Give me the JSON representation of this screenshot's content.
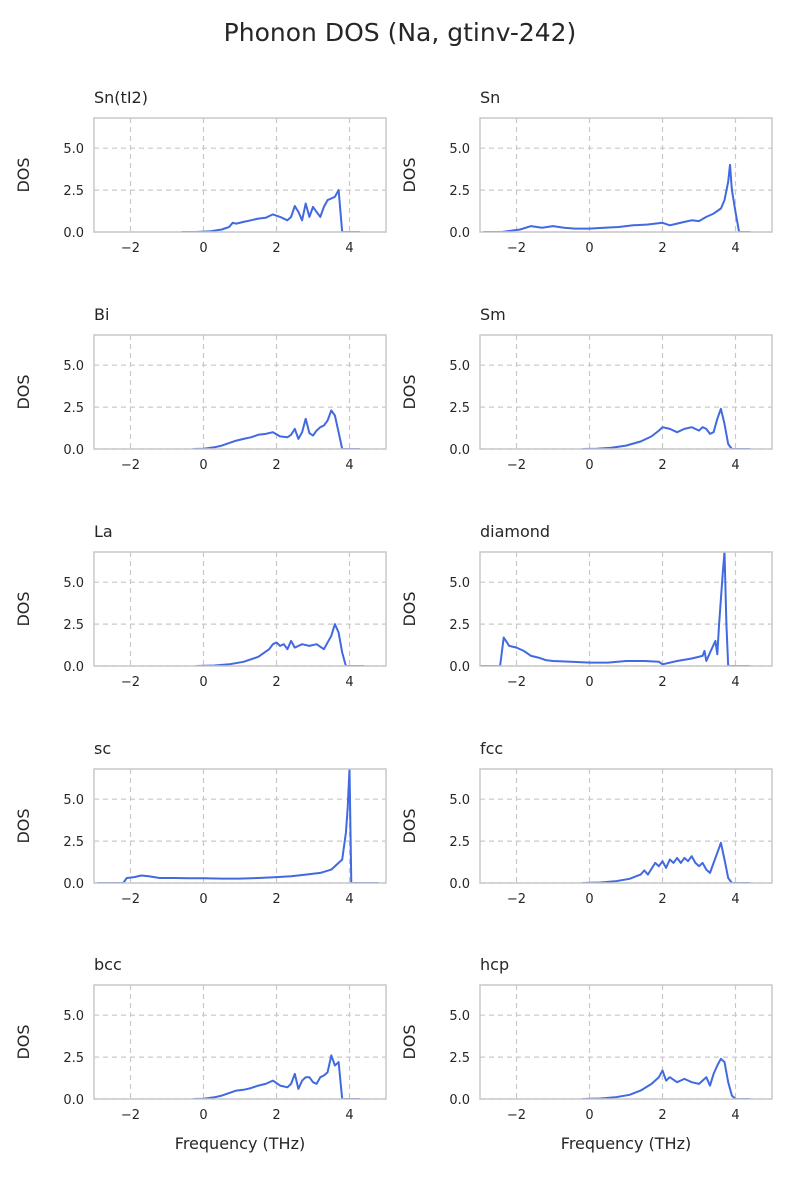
{
  "figure": {
    "title": "Phonon DOS (Na, gtinv-242)"
  },
  "chart_data": [
    {
      "type": "line",
      "title": "Sn(tI2)",
      "xlabel": "",
      "ylabel": "DOS",
      "xlim": [
        -3,
        5
      ],
      "ylim": [
        0,
        6.8
      ],
      "xticks": [
        -2,
        0,
        2,
        4
      ],
      "yticks": [
        0.0,
        2.5,
        5.0
      ],
      "grid": true,
      "line_color": "#4169e1",
      "x": [
        -0.6,
        -0.2,
        0.2,
        0.5,
        0.7,
        0.8,
        0.9,
        1.1,
        1.3,
        1.5,
        1.7,
        1.9,
        2.1,
        2.3,
        2.4,
        2.5,
        2.6,
        2.7,
        2.8,
        2.9,
        3.0,
        3.1,
        3.2,
        3.3,
        3.4,
        3.5,
        3.6,
        3.7,
        3.8,
        3.9,
        4.0,
        4.3
      ],
      "y": [
        0,
        0,
        0.05,
        0.15,
        0.3,
        0.55,
        0.5,
        0.6,
        0.7,
        0.8,
        0.85,
        1.05,
        0.9,
        0.7,
        0.9,
        1.55,
        1.2,
        0.7,
        1.7,
        0.9,
        1.5,
        1.2,
        0.9,
        1.5,
        1.9,
        2.0,
        2.1,
        2.5,
        0,
        0,
        0,
        0
      ]
    },
    {
      "type": "line",
      "title": "Sn",
      "xlabel": "",
      "ylabel": "DOS",
      "xlim": [
        -3,
        5
      ],
      "ylim": [
        0,
        6.8
      ],
      "xticks": [
        -2,
        0,
        2,
        4
      ],
      "yticks": [
        0.0,
        2.5,
        5.0
      ],
      "grid": true,
      "line_color": "#4169e1",
      "x": [
        -2.9,
        -2.4,
        -1.9,
        -1.6,
        -1.3,
        -1.0,
        -0.7,
        -0.4,
        0,
        0.4,
        0.8,
        1.2,
        1.6,
        2.0,
        2.2,
        2.4,
        2.6,
        2.8,
        3.0,
        3.2,
        3.4,
        3.6,
        3.7,
        3.8,
        3.85,
        3.9,
        4.0,
        4.1,
        4.4
      ],
      "y": [
        0,
        0,
        0.15,
        0.35,
        0.25,
        0.35,
        0.25,
        0.2,
        0.2,
        0.25,
        0.3,
        0.4,
        0.45,
        0.55,
        0.4,
        0.5,
        0.6,
        0.7,
        0.65,
        0.9,
        1.1,
        1.4,
        1.9,
        3.0,
        4.0,
        2.5,
        1.2,
        0,
        0
      ]
    },
    {
      "type": "line",
      "title": "Bi",
      "xlabel": "",
      "ylabel": "DOS",
      "xlim": [
        -3,
        5
      ],
      "ylim": [
        0,
        6.8
      ],
      "xticks": [
        -2,
        0,
        2,
        4
      ],
      "yticks": [
        0.0,
        2.5,
        5.0
      ],
      "grid": true,
      "line_color": "#4169e1",
      "x": [
        -0.3,
        0,
        0.3,
        0.5,
        0.7,
        0.9,
        1.1,
        1.3,
        1.5,
        1.7,
        1.9,
        2.1,
        2.3,
        2.4,
        2.5,
        2.6,
        2.7,
        2.8,
        2.9,
        3.0,
        3.1,
        3.2,
        3.3,
        3.4,
        3.5,
        3.6,
        3.7,
        3.8,
        3.9,
        4.3
      ],
      "y": [
        0,
        0.02,
        0.1,
        0.2,
        0.35,
        0.5,
        0.6,
        0.7,
        0.85,
        0.9,
        1.0,
        0.75,
        0.7,
        0.85,
        1.2,
        0.6,
        1.0,
        1.8,
        0.95,
        0.8,
        1.1,
        1.3,
        1.4,
        1.7,
        2.3,
        2.0,
        1.0,
        0,
        0,
        0
      ]
    },
    {
      "type": "line",
      "title": "Sm",
      "xlabel": "",
      "ylabel": "DOS",
      "xlim": [
        -3,
        5
      ],
      "ylim": [
        0,
        6.8
      ],
      "xticks": [
        -2,
        0,
        2,
        4
      ],
      "yticks": [
        0.0,
        2.5,
        5.0
      ],
      "grid": true,
      "line_color": "#4169e1",
      "x": [
        -0.2,
        0.2,
        0.6,
        1.0,
        1.4,
        1.7,
        1.9,
        2.0,
        2.2,
        2.4,
        2.6,
        2.8,
        3.0,
        3.1,
        3.2,
        3.3,
        3.4,
        3.5,
        3.6,
        3.7,
        3.8,
        3.9,
        4.0,
        4.4
      ],
      "y": [
        0,
        0.02,
        0.08,
        0.2,
        0.45,
        0.75,
        1.1,
        1.3,
        1.2,
        1.0,
        1.2,
        1.3,
        1.1,
        1.3,
        1.2,
        0.9,
        1.0,
        1.8,
        2.4,
        1.5,
        0.3,
        0,
        0,
        0
      ]
    },
    {
      "type": "line",
      "title": "La",
      "xlabel": "",
      "ylabel": "DOS",
      "xlim": [
        -3,
        5
      ],
      "ylim": [
        0,
        6.8
      ],
      "xticks": [
        -2,
        0,
        2,
        4
      ],
      "yticks": [
        0.0,
        2.5,
        5.0
      ],
      "grid": true,
      "line_color": "#4169e1",
      "x": [
        -0.2,
        0.3,
        0.7,
        1.1,
        1.5,
        1.8,
        1.9,
        2.0,
        2.1,
        2.2,
        2.3,
        2.4,
        2.5,
        2.7,
        2.9,
        3.1,
        3.3,
        3.5,
        3.6,
        3.7,
        3.8,
        3.9,
        4.0,
        4.4
      ],
      "y": [
        0,
        0.03,
        0.1,
        0.25,
        0.55,
        1.0,
        1.3,
        1.4,
        1.2,
        1.3,
        1.0,
        1.5,
        1.1,
        1.3,
        1.2,
        1.3,
        1.0,
        1.8,
        2.5,
        2.0,
        0.8,
        0,
        0,
        0
      ]
    },
    {
      "type": "line",
      "title": "diamond",
      "xlabel": "",
      "ylabel": "DOS",
      "xlim": [
        -3,
        5
      ],
      "ylim": [
        0,
        6.8
      ],
      "xticks": [
        -2,
        0,
        2,
        4
      ],
      "yticks": [
        0.0,
        2.5,
        5.0
      ],
      "grid": true,
      "line_color": "#4169e1",
      "x": [
        -3.0,
        -2.5,
        -2.45,
        -2.35,
        -2.2,
        -2.0,
        -1.8,
        -1.6,
        -1.4,
        -1.2,
        -1.0,
        -0.5,
        0,
        0.5,
        1.0,
        1.5,
        1.9,
        2.0,
        2.4,
        2.8,
        3.1,
        3.15,
        3.2,
        3.3,
        3.45,
        3.5,
        3.55,
        3.6,
        3.65,
        3.7,
        3.75,
        3.8,
        4.4
      ],
      "y": [
        0,
        0,
        0,
        1.7,
        1.2,
        1.1,
        0.9,
        0.6,
        0.5,
        0.35,
        0.3,
        0.25,
        0.2,
        0.2,
        0.3,
        0.3,
        0.25,
        0.1,
        0.3,
        0.45,
        0.6,
        0.9,
        0.3,
        0.8,
        1.5,
        0.7,
        2.5,
        4.0,
        5.5,
        6.8,
        2.5,
        0,
        0
      ]
    },
    {
      "type": "line",
      "title": "sc",
      "xlabel": "",
      "ylabel": "DOS",
      "xlim": [
        -3,
        5
      ],
      "ylim": [
        0,
        6.8
      ],
      "xticks": [
        -2,
        0,
        2,
        4
      ],
      "yticks": [
        0.0,
        2.5,
        5.0
      ],
      "grid": true,
      "line_color": "#4169e1",
      "x": [
        -2.9,
        -2.2,
        -2.1,
        -1.9,
        -1.7,
        -1.5,
        -1.2,
        -0.8,
        -0.4,
        0,
        0.5,
        1.0,
        1.5,
        2.0,
        2.4,
        2.8,
        3.2,
        3.5,
        3.7,
        3.8,
        3.9,
        3.95,
        4.0,
        4.05,
        4.1,
        4.8
      ],
      "y": [
        0,
        0,
        0.3,
        0.35,
        0.45,
        0.4,
        0.3,
        0.3,
        0.28,
        0.28,
        0.26,
        0.26,
        0.3,
        0.35,
        0.4,
        0.5,
        0.6,
        0.8,
        1.2,
        1.4,
        3.0,
        4.5,
        6.8,
        0,
        0,
        0
      ]
    },
    {
      "type": "line",
      "title": "fcc",
      "xlabel": "",
      "ylabel": "DOS",
      "xlim": [
        -3,
        5
      ],
      "ylim": [
        0,
        6.8
      ],
      "xticks": [
        -2,
        0,
        2,
        4
      ],
      "yticks": [
        0.0,
        2.5,
        5.0
      ],
      "grid": true,
      "line_color": "#4169e1",
      "x": [
        -0.2,
        0.3,
        0.7,
        1.1,
        1.4,
        1.5,
        1.6,
        1.8,
        1.9,
        2.0,
        2.1,
        2.2,
        2.3,
        2.4,
        2.5,
        2.6,
        2.7,
        2.8,
        2.9,
        3.0,
        3.1,
        3.2,
        3.3,
        3.4,
        3.5,
        3.6,
        3.7,
        3.8,
        3.9,
        4.4
      ],
      "y": [
        0,
        0.03,
        0.1,
        0.25,
        0.5,
        0.75,
        0.5,
        1.2,
        1.0,
        1.3,
        0.9,
        1.4,
        1.2,
        1.5,
        1.2,
        1.5,
        1.3,
        1.6,
        1.2,
        1.0,
        1.2,
        0.8,
        0.6,
        1.2,
        1.8,
        2.4,
        1.4,
        0.3,
        0,
        0
      ]
    },
    {
      "type": "line",
      "title": "bcc",
      "xlabel": "",
      "ylabel": "DOS",
      "xlim": [
        -3,
        5
      ],
      "ylim": [
        0,
        6.8
      ],
      "xticks": [
        -2,
        0,
        2,
        4
      ],
      "yticks": [
        0.0,
        2.5,
        5.0
      ],
      "grid": true,
      "line_color": "#4169e1",
      "x": [
        -0.3,
        0,
        0.3,
        0.5,
        0.7,
        0.9,
        1.1,
        1.3,
        1.5,
        1.7,
        1.9,
        2.1,
        2.3,
        2.4,
        2.5,
        2.6,
        2.7,
        2.8,
        2.9,
        3.0,
        3.1,
        3.2,
        3.3,
        3.4,
        3.5,
        3.6,
        3.7,
        3.8,
        3.9,
        4.3
      ],
      "y": [
        0,
        0.02,
        0.1,
        0.2,
        0.35,
        0.5,
        0.55,
        0.65,
        0.8,
        0.9,
        1.1,
        0.8,
        0.7,
        0.9,
        1.5,
        0.6,
        1.1,
        1.3,
        1.3,
        1.0,
        0.9,
        1.3,
        1.4,
        1.6,
        2.6,
        2.0,
        2.2,
        0,
        0,
        0
      ]
    },
    {
      "type": "line",
      "title": "hcp",
      "xlabel": "",
      "ylabel": "DOS",
      "xlim": [
        -3,
        5
      ],
      "ylim": [
        0,
        6.8
      ],
      "xticks": [
        -2,
        0,
        2,
        4
      ],
      "yticks": [
        0.0,
        2.5,
        5.0
      ],
      "grid": true,
      "line_color": "#4169e1",
      "x": [
        -0.2,
        0.3,
        0.7,
        1.1,
        1.4,
        1.7,
        1.9,
        2.0,
        2.1,
        2.2,
        2.4,
        2.6,
        2.8,
        3.0,
        3.1,
        3.2,
        3.3,
        3.4,
        3.5,
        3.6,
        3.7,
        3.8,
        3.9,
        4.0,
        4.4
      ],
      "y": [
        0,
        0.03,
        0.1,
        0.25,
        0.5,
        0.9,
        1.3,
        1.7,
        1.1,
        1.3,
        1.0,
        1.2,
        1.0,
        0.9,
        1.1,
        1.3,
        0.8,
        1.5,
        2.0,
        2.4,
        2.2,
        1.0,
        0.2,
        0,
        0
      ]
    }
  ],
  "x_axis_label": "Frequency (THz)"
}
